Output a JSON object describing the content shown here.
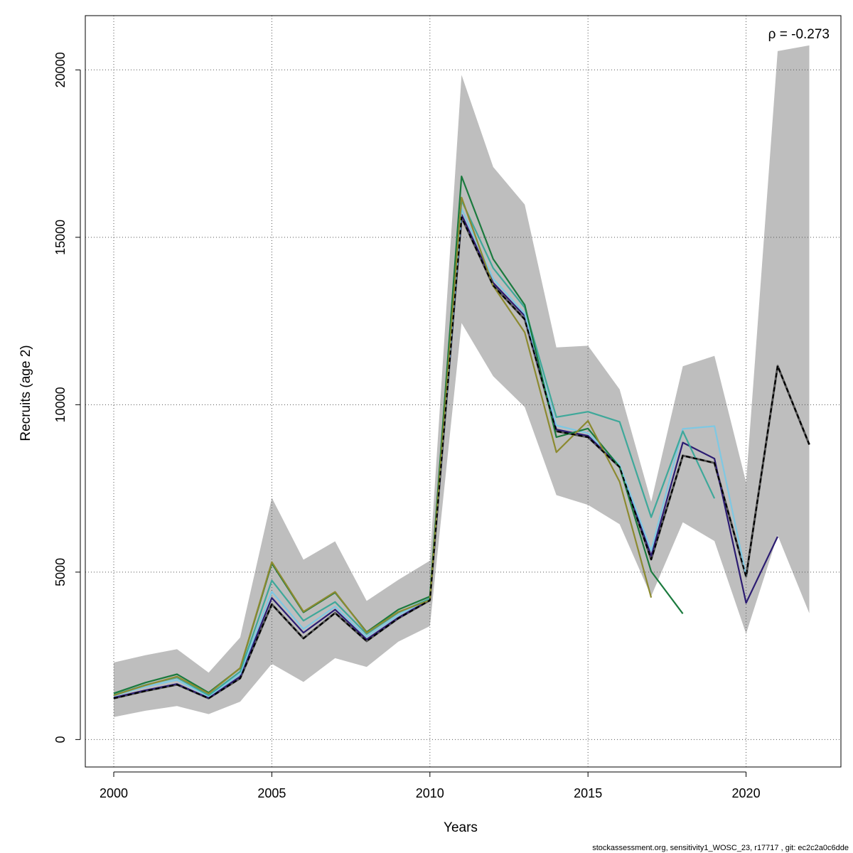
{
  "chart_data": {
    "type": "line",
    "title": "",
    "xlabel": "Years",
    "ylabel": "Recruits (age 2)",
    "xlim": [
      1999.1,
      2023.0
    ],
    "ylim": [
      -820,
      21620
    ],
    "x_ticks": [
      2000,
      2005,
      2010,
      2015,
      2020
    ],
    "y_ticks": [
      0,
      5000,
      10000,
      15000,
      20000
    ],
    "x_tick_labels": [
      "2000",
      "2005",
      "2010",
      "2015",
      "2020"
    ],
    "y_tick_labels": [
      "0",
      "5000",
      "10000",
      "15000",
      "20000"
    ],
    "grid": true,
    "annotation": "ρ = -0.273",
    "footer": "stockassessment.org, sensitivity1_WOSC_23, r17717 , git: ec2c2a0c6dde",
    "confidence_band": {
      "color": "#bebebe",
      "x": [
        2000,
        2001,
        2002,
        2003,
        2004,
        2005,
        2006,
        2007,
        2008,
        2009,
        2010,
        2011,
        2012,
        2013,
        2014,
        2015,
        2016,
        2017,
        2018,
        2019,
        2020,
        2021,
        2022
      ],
      "upper": [
        2300,
        2520,
        2700,
        2000,
        3050,
        7220,
        5370,
        5920,
        4140,
        4770,
        5340,
        19850,
        17100,
        15980,
        11710,
        11760,
        10460,
        7100,
        11150,
        11460,
        7680,
        20560,
        20730
      ],
      "lower": [
        670,
        860,
        1000,
        760,
        1130,
        2260,
        1720,
        2430,
        2170,
        2920,
        3390,
        12440,
        10850,
        9930,
        7300,
        7010,
        6430,
        4280,
        6490,
        5930,
        3160,
        6100,
        3770
      ]
    },
    "series": [
      {
        "color": "#000000",
        "dashed": true,
        "x": [
          2000,
          2001,
          2002,
          2003,
          2004,
          2005,
          2006,
          2007,
          2008,
          2009,
          2010,
          2011,
          2012,
          2013,
          2014,
          2015,
          2016,
          2017,
          2018,
          2019,
          2020,
          2021,
          2022
        ],
        "values": [
          1230,
          1450,
          1640,
          1230,
          1830,
          4040,
          3020,
          3780,
          2940,
          3620,
          4160,
          15600,
          13560,
          12550,
          9210,
          9030,
          8140,
          5380,
          8480,
          8260,
          4870,
          11160,
          8810
        ]
      },
      {
        "color": "#2c1c72",
        "x": [
          2000,
          2001,
          2002,
          2003,
          2004,
          2005,
          2006,
          2007,
          2008,
          2009,
          2010,
          2011,
          2012,
          2013,
          2014,
          2015,
          2016,
          2017,
          2018,
          2019,
          2020,
          2021
        ],
        "values": [
          1250,
          1470,
          1660,
          1240,
          1880,
          4230,
          3190,
          3880,
          2990,
          3640,
          4180,
          15680,
          13640,
          12650,
          9260,
          9070,
          8160,
          5480,
          8870,
          8390,
          4080,
          6060
        ]
      },
      {
        "color": "#7ec8e3",
        "x": [
          2000,
          2001,
          2002,
          2003,
          2004,
          2005,
          2006,
          2007,
          2008,
          2009,
          2010,
          2011,
          2012,
          2013,
          2014,
          2015,
          2016,
          2017,
          2018,
          2019,
          2020
        ],
        "values": [
          1300,
          1580,
          1780,
          1290,
          1960,
          4420,
          3300,
          3970,
          3070,
          3720,
          4200,
          15850,
          13760,
          12720,
          9380,
          9150,
          8200,
          5640,
          9280,
          9360,
          4890
        ]
      },
      {
        "color": "#3ea89a",
        "x": [
          2000,
          2001,
          2002,
          2003,
          2004,
          2005,
          2006,
          2007,
          2008,
          2009,
          2010,
          2011,
          2012,
          2013,
          2014,
          2015,
          2016,
          2017,
          2018,
          2019
        ],
        "values": [
          1330,
          1630,
          1850,
          1320,
          2030,
          4750,
          3550,
          4110,
          3150,
          3790,
          4210,
          16100,
          14080,
          12900,
          9630,
          9790,
          9490,
          6640,
          9210,
          7200
        ]
      },
      {
        "color": "#1b7a3e",
        "x": [
          2000,
          2001,
          2002,
          2003,
          2004,
          2005,
          2006,
          2007,
          2008,
          2009,
          2010,
          2011,
          2012,
          2013,
          2014,
          2015,
          2016,
          2017,
          2018
        ],
        "values": [
          1380,
          1700,
          1950,
          1400,
          2130,
          5260,
          3800,
          4390,
          3210,
          3880,
          4270,
          16820,
          14350,
          12980,
          9030,
          9290,
          8140,
          5020,
          3760
        ]
      },
      {
        "color": "#8c8a30",
        "x": [
          2000,
          2001,
          2002,
          2003,
          2004,
          2005,
          2006,
          2007,
          2008,
          2009,
          2010,
          2011,
          2012,
          2013,
          2014,
          2015,
          2016,
          2017
        ],
        "values": [
          1320,
          1620,
          1880,
          1370,
          2140,
          5300,
          3820,
          4410,
          3190,
          3810,
          4160,
          16190,
          13550,
          12160,
          8580,
          9520,
          7700,
          4240
        ]
      }
    ]
  }
}
